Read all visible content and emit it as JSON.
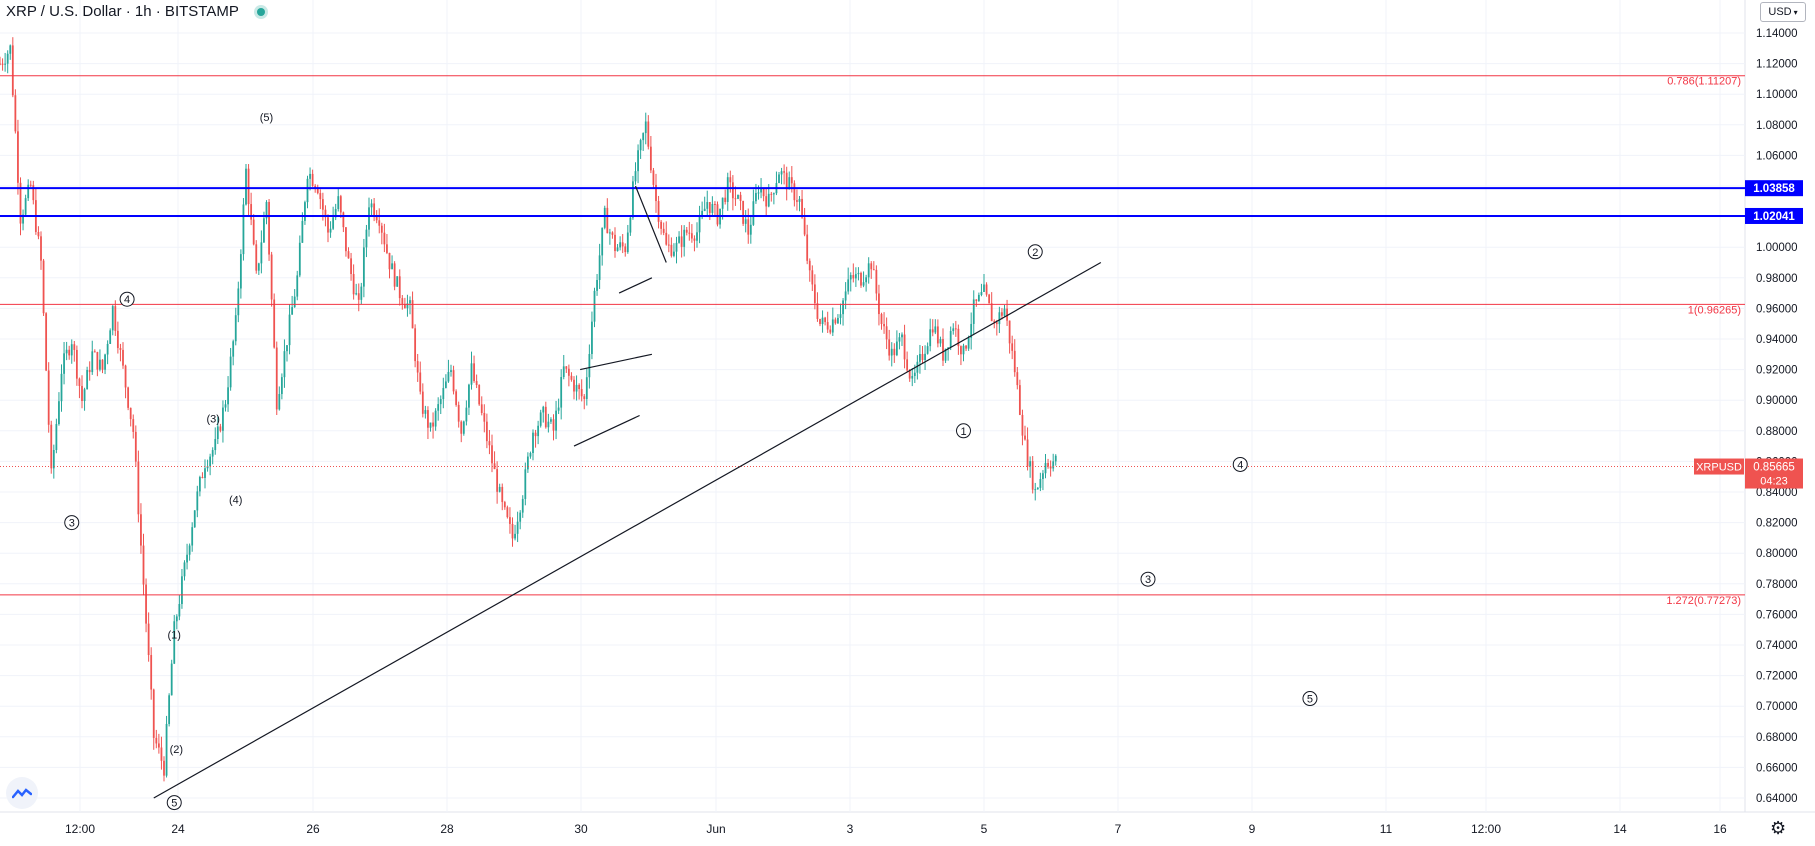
{
  "header": {
    "title": "XRP / U.S. Dollar · 1h · BITSTAMP",
    "status_icon": "market-open-dot"
  },
  "currency_selector": {
    "label": "USD",
    "icon": "chevron-down-icon"
  },
  "settings_icon": "gear-icon",
  "logo_icon": "tradingview-logo-icon",
  "chart_data": {
    "type": "candlestick",
    "symbol": "XRPUSD",
    "interval": "1h",
    "price_axis": {
      "ylim": [
        0.63,
        1.15
      ],
      "ticks": [
        "1.14000",
        "1.12000",
        "1.10000",
        "1.08000",
        "1.06000",
        "1.04000",
        "1.02000",
        "1.00000",
        "0.98000",
        "0.96000",
        "0.94000",
        "0.92000",
        "0.90000",
        "0.88000",
        "0.86000",
        "0.84000",
        "0.82000",
        "0.80000",
        "0.78000",
        "0.76000",
        "0.74000",
        "0.72000",
        "0.70000",
        "0.68000",
        "0.66000",
        "0.64000"
      ]
    },
    "time_axis": {
      "ticks": [
        "12:00",
        "24",
        "26",
        "28",
        "30",
        "Jun",
        "3",
        "5",
        "7",
        "9",
        "11",
        "12:00",
        "14",
        "16"
      ]
    },
    "price_path": [
      [
        0,
        1.12
      ],
      [
        0.5,
        1.13
      ],
      [
        1,
        1.02
      ],
      [
        1.5,
        1.04
      ],
      [
        2,
        0.99
      ],
      [
        2.5,
        0.85
      ],
      [
        3,
        0.92
      ],
      [
        3.5,
        0.94
      ],
      [
        4,
        0.9
      ],
      [
        4.5,
        0.93
      ],
      [
        5,
        0.92
      ],
      [
        5.5,
        0.96
      ],
      [
        6,
        0.92
      ],
      [
        6.5,
        0.88
      ],
      [
        7,
        0.78
      ],
      [
        7.5,
        0.68
      ],
      [
        8,
        0.66
      ],
      [
        8.5,
        0.75
      ],
      [
        9,
        0.79
      ],
      [
        9.5,
        0.83
      ],
      [
        10,
        0.86
      ],
      [
        10.5,
        0.87
      ],
      [
        11,
        0.9
      ],
      [
        11.5,
        0.95
      ],
      [
        12,
        1.05
      ],
      [
        12.5,
        0.98
      ],
      [
        13,
        1.03
      ],
      [
        13.5,
        0.9
      ],
      [
        14,
        0.94
      ],
      [
        14.5,
        0.98
      ],
      [
        15,
        1.05
      ],
      [
        15.5,
        1.04
      ],
      [
        16,
        1.01
      ],
      [
        16.5,
        1.03
      ],
      [
        17,
        0.99
      ],
      [
        17.5,
        0.96
      ],
      [
        18,
        1.03
      ],
      [
        18.5,
        1.02
      ],
      [
        19,
        0.99
      ],
      [
        19.5,
        0.97
      ],
      [
        20,
        0.96
      ],
      [
        20.5,
        0.9
      ],
      [
        21,
        0.88
      ],
      [
        21.5,
        0.9
      ],
      [
        22,
        0.92
      ],
      [
        22.5,
        0.88
      ],
      [
        23,
        0.92
      ],
      [
        23.5,
        0.89
      ],
      [
        24,
        0.86
      ],
      [
        24.5,
        0.83
      ],
      [
        25,
        0.81
      ],
      [
        25.5,
        0.84
      ],
      [
        26,
        0.88
      ],
      [
        26.5,
        0.89
      ],
      [
        27,
        0.88
      ],
      [
        27.5,
        0.92
      ],
      [
        28,
        0.91
      ],
      [
        28.5,
        0.9
      ],
      [
        29,
        0.97
      ],
      [
        29.5,
        1.02
      ],
      [
        30,
        1.0
      ],
      [
        30.5,
        1.0
      ],
      [
        31,
        1.05
      ],
      [
        31.5,
        1.08
      ],
      [
        32,
        1.03
      ],
      [
        32.5,
        1.0
      ],
      [
        33,
        1.0
      ],
      [
        33.5,
        1.01
      ],
      [
        34,
        1.01
      ],
      [
        34.5,
        1.03
      ],
      [
        35,
        1.02
      ],
      [
        35.5,
        1.04
      ],
      [
        36,
        1.03
      ],
      [
        36.5,
        1.01
      ],
      [
        37,
        1.04
      ],
      [
        37.5,
        1.03
      ],
      [
        38,
        1.05
      ],
      [
        38.5,
        1.04
      ],
      [
        39,
        1.03
      ],
      [
        39.5,
        0.98
      ],
      [
        40,
        0.95
      ],
      [
        40.5,
        0.95
      ],
      [
        41,
        0.96
      ],
      [
        41.5,
        0.98
      ],
      [
        42,
        0.98
      ],
      [
        42.5,
        0.99
      ],
      [
        43,
        0.95
      ],
      [
        43.5,
        0.93
      ],
      [
        44,
        0.94
      ],
      [
        44.5,
        0.91
      ],
      [
        45,
        0.93
      ],
      [
        45.5,
        0.95
      ],
      [
        46,
        0.93
      ],
      [
        46.5,
        0.95
      ],
      [
        47,
        0.93
      ],
      [
        47.5,
        0.96
      ],
      [
        48,
        0.97
      ],
      [
        48.5,
        0.95
      ],
      [
        49,
        0.96
      ],
      [
        49.5,
        0.92
      ],
      [
        50,
        0.87
      ],
      [
        50.5,
        0.84
      ],
      [
        51,
        0.86
      ],
      [
        51.5,
        0.86
      ]
    ],
    "horizontal_levels": [
      {
        "price": 1.11207,
        "color": "#f23645",
        "label": "0.786(1.11207)"
      },
      {
        "price": 1.03858,
        "color": "#0000ff",
        "label": "1.03858",
        "bold": true
      },
      {
        "price": 1.02041,
        "color": "#0000ff",
        "label": "1.02041",
        "bold": true
      },
      {
        "price": 0.96265,
        "color": "#f23645",
        "label": "1(0.96265)"
      },
      {
        "price": 0.77273,
        "color": "#f23645",
        "label": "1.272(0.77273)"
      }
    ],
    "current_price": {
      "symbol": "XRPUSD",
      "value": "0.85665",
      "countdown": "04:23",
      "price": 0.85665
    },
    "trendlines": [
      {
        "from": [
          7.5,
          0.64
        ],
        "to": [
          53.7,
          0.99
        ]
      },
      {
        "from": [
          30.2,
          0.97
        ],
        "to": [
          31.8,
          0.98
        ]
      },
      {
        "from": [
          28.3,
          0.92
        ],
        "to": [
          31.8,
          0.93
        ]
      },
      {
        "from": [
          28.0,
          0.87
        ],
        "to": [
          31.2,
          0.89
        ]
      },
      {
        "from": [
          31.0,
          1.04
        ],
        "to": [
          32.5,
          0.99
        ]
      }
    ],
    "wave_labels": [
      {
        "t": 3.5,
        "p": 0.82,
        "text": "3",
        "circled": true
      },
      {
        "t": 6.2,
        "p": 0.966,
        "text": "4",
        "circled": true
      },
      {
        "t": 8.5,
        "p": 0.637,
        "text": "5",
        "circled": true
      },
      {
        "t": 8.5,
        "p": 0.747,
        "text": "(1)",
        "circled": false
      },
      {
        "t": 8.6,
        "p": 0.672,
        "text": "(2)",
        "circled": false
      },
      {
        "t": 10.4,
        "p": 0.888,
        "text": "(3)",
        "circled": false
      },
      {
        "t": 11.5,
        "p": 0.835,
        "text": "(4)",
        "circled": false
      },
      {
        "t": 13.0,
        "p": 1.085,
        "text": "(5)",
        "circled": false
      },
      {
        "t": 47.0,
        "p": 0.88,
        "text": "1",
        "circled": true
      },
      {
        "t": 50.5,
        "p": 0.997,
        "text": "2",
        "circled": true
      },
      {
        "t": 56.0,
        "p": 0.783,
        "text": "3",
        "circled": true
      },
      {
        "t": 60.5,
        "p": 0.858,
        "text": "4",
        "circled": true
      },
      {
        "t": 63.9,
        "p": 0.705,
        "text": "5",
        "circled": true
      }
    ]
  }
}
